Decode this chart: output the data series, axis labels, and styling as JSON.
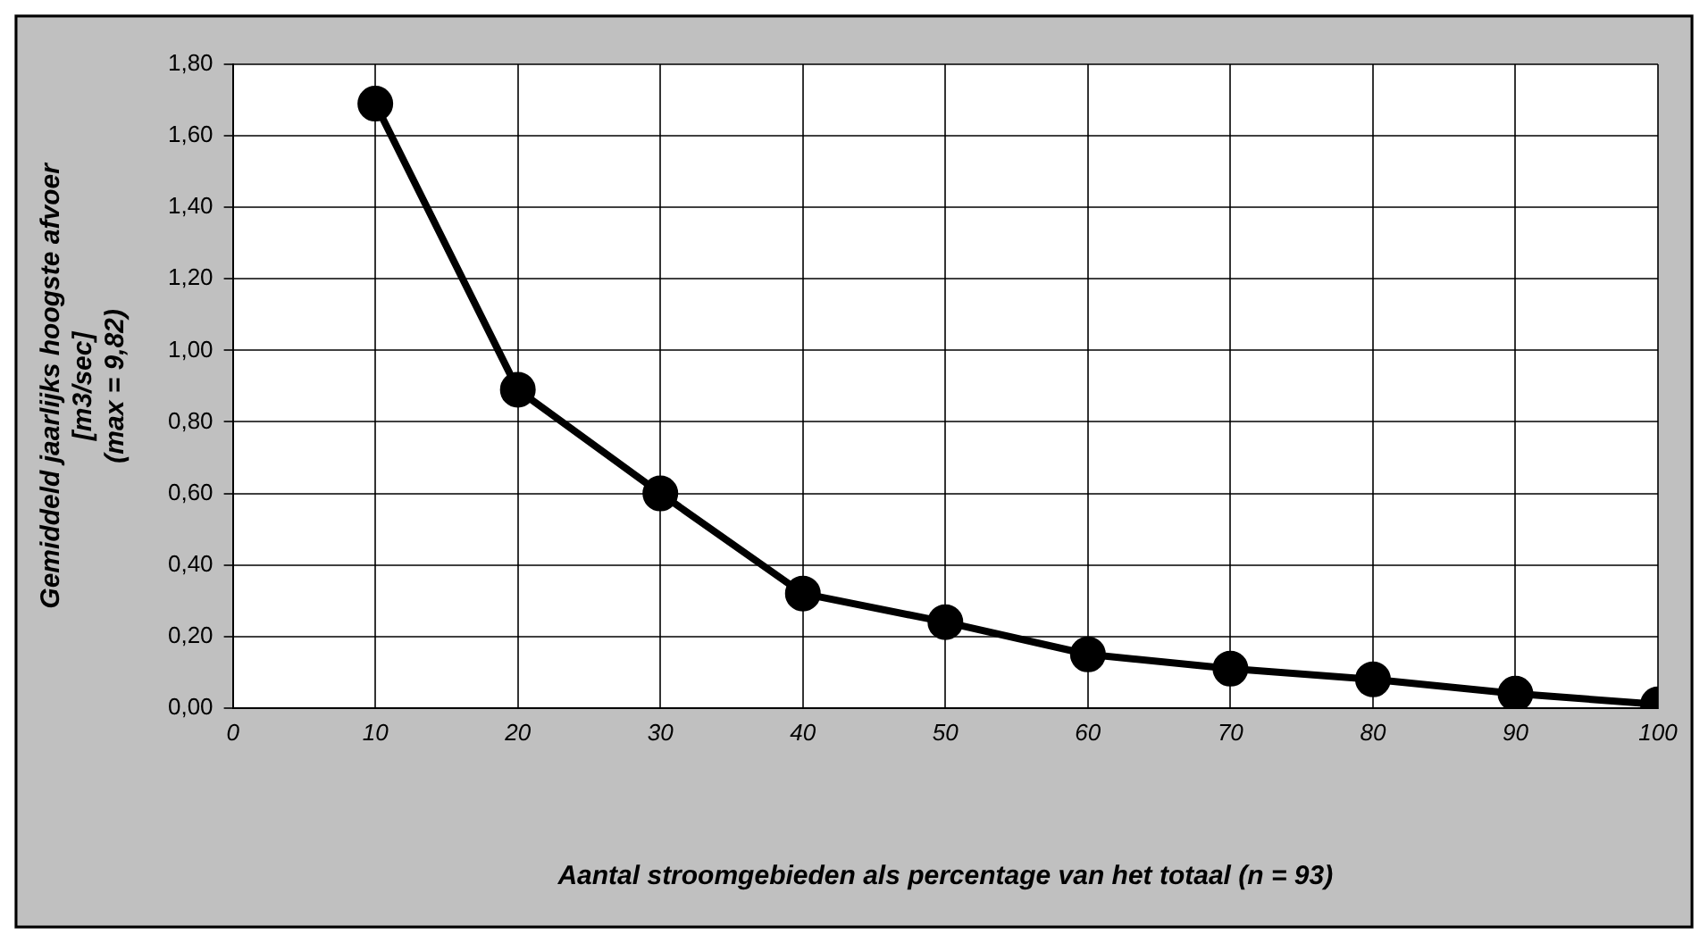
{
  "chart_data": {
    "type": "line",
    "xlabel": "Aantal stroomgebieden als percentage van het totaal (n = 93)",
    "ylabel": "Gemiddeld jaarlijks hoogste afvoer\n[m3/sec]\n(max = 9,82)",
    "x": [
      10,
      20,
      30,
      40,
      50,
      60,
      70,
      80,
      90,
      100
    ],
    "series": [
      {
        "color": "#000000",
        "values": [
          1.69,
          0.89,
          0.6,
          0.32,
          0.24,
          0.15,
          0.11,
          0.08,
          0.04,
          0.01
        ]
      }
    ],
    "xlim": [
      0,
      100
    ],
    "xticks": [
      0,
      10,
      20,
      30,
      40,
      50,
      60,
      70,
      80,
      90,
      100
    ],
    "ylim": [
      0,
      1.8
    ],
    "yticks": [
      {
        "value": 0,
        "label": "0,00"
      },
      {
        "value": 0.2,
        "label": "0,20"
      },
      {
        "value": 0.4,
        "label": "0,40"
      },
      {
        "value": 0.6,
        "label": "0,60"
      },
      {
        "value": 0.8,
        "label": "0,80"
      },
      {
        "value": 1,
        "label": "1,00"
      },
      {
        "value": 1.2,
        "label": "1,20"
      },
      {
        "value": 1.4,
        "label": "1,40"
      },
      {
        "value": 1.6,
        "label": "1,60"
      },
      {
        "value": 1.8,
        "label": "1,80"
      }
    ],
    "grid": true,
    "marker": "circle",
    "line_style": "solid",
    "legend": false
  }
}
